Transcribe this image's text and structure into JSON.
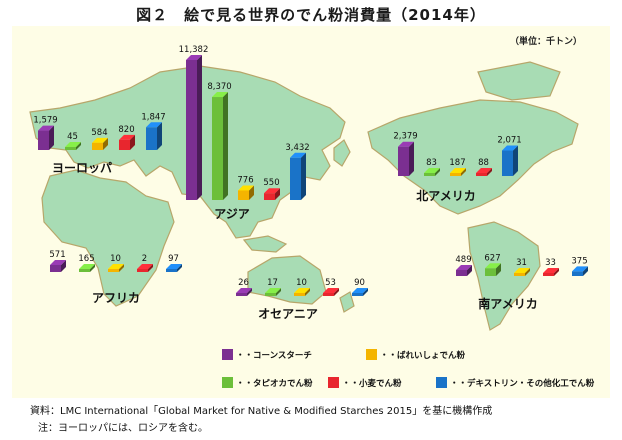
{
  "title": "図２　絵で見る世界のでん粉消費量（2014年）",
  "unit_label": "（単位：千トン）",
  "source_text": "資料：LMC International「Global Market for Native & Modified Starches 2015」を基に機構作成",
  "note_text": "注：ヨーロッパには、ロシアを含む。",
  "colors": {
    "corn": "#7b2f91",
    "potato": "#f4b400",
    "tapioca": "#6cbf3a",
    "wheat": "#e8262e",
    "other": "#1a73c8",
    "land": "#a8dcb4",
    "land_edge": "#b7a66a",
    "panel": "#fefde6"
  },
  "chart_data": {
    "type": "bar",
    "title": "図２　絵で見る世界のでん粉消費量（2014年）",
    "unit": "（単位：千トン）",
    "series": [
      {
        "key": "corn",
        "name": "・・コーンスターチ"
      },
      {
        "key": "potato",
        "name": "・・ばれいしょでん粉"
      },
      {
        "key": "tapioca",
        "name": "・・タピオカでん粉"
      },
      {
        "key": "wheat",
        "name": "・・小麦でん粉"
      },
      {
        "key": "other",
        "name": "・・デキストリン・その他化工でん粉"
      }
    ],
    "regions": [
      {
        "name": "ヨーロッパ",
        "values": {
          "corn": 1579,
          "tapioca": 45,
          "potato": 584,
          "wheat": 820,
          "other": 1847
        },
        "labels": {
          "corn": "1,579",
          "tapioca": "45",
          "potato": "584",
          "wheat": "820",
          "other": "1,847"
        }
      },
      {
        "name": "アジア",
        "values": {
          "corn": 11382,
          "tapioca": 8370,
          "potato": 776,
          "wheat": 550,
          "other": 3432
        },
        "labels": {
          "corn": "11,382",
          "tapioca": "8,370",
          "potato": "776",
          "wheat": "550",
          "other": "3,432"
        }
      },
      {
        "name": "北アメリカ",
        "values": {
          "corn": 2379,
          "tapioca": 83,
          "potato": 187,
          "wheat": 88,
          "other": 2071
        },
        "labels": {
          "corn": "2,379",
          "tapioca": "83",
          "potato": "187",
          "wheat": "88",
          "other": "2,071"
        }
      },
      {
        "name": "アフリカ",
        "values": {
          "corn": 571,
          "tapioca": 165,
          "potato": 10,
          "wheat": 2,
          "other": 97
        },
        "labels": {
          "corn": "571",
          "tapioca": "165",
          "potato": "10",
          "wheat": "2",
          "other": "97"
        }
      },
      {
        "name": "オセアニア",
        "values": {
          "corn": 26,
          "tapioca": 17,
          "potato": 10,
          "wheat": 53,
          "other": 90
        },
        "labels": {
          "corn": "26",
          "tapioca": "17",
          "potato": "10",
          "wheat": "53",
          "other": "90"
        }
      },
      {
        "name": "南アメリカ",
        "values": {
          "corn": 489,
          "tapioca": 627,
          "potato": 31,
          "wheat": 33,
          "other": 375
        },
        "labels": {
          "corn": "489",
          "tapioca": "627",
          "potato": "31",
          "wheat": "33",
          "other": "375"
        }
      }
    ]
  }
}
